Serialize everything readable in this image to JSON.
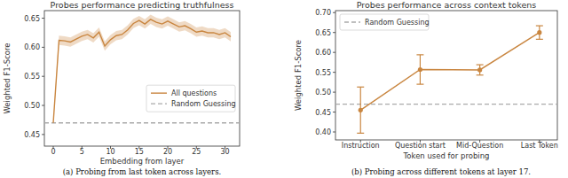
{
  "chart_data": [
    {
      "type": "line",
      "title": "Probes performance predicting truthfulness",
      "x_label": "Embedding from layer",
      "y_label": "Weighted F1-Score",
      "caption": "(a) Probing from last token across layers.",
      "x": [
        0,
        1,
        2,
        3,
        4,
        5,
        6,
        7,
        8,
        9,
        10,
        11,
        12,
        13,
        14,
        15,
        16,
        17,
        18,
        19,
        20,
        21,
        22,
        23,
        24,
        25,
        26,
        27,
        28,
        29,
        30,
        31
      ],
      "series": [
        {
          "name": "All questions",
          "color": "#c98640",
          "values": [
            0.47,
            0.612,
            0.611,
            0.609,
            0.614,
            0.619,
            0.622,
            0.616,
            0.626,
            0.602,
            0.613,
            0.62,
            0.622,
            0.63,
            0.641,
            0.646,
            0.64,
            0.648,
            0.643,
            0.64,
            0.645,
            0.64,
            0.635,
            0.637,
            0.632,
            0.626,
            0.628,
            0.625,
            0.625,
            0.622,
            0.625,
            0.618
          ],
          "errors": [
            0.003,
            0.008,
            0.008,
            0.008,
            0.008,
            0.008,
            0.008,
            0.008,
            0.008,
            0.008,
            0.008,
            0.008,
            0.008,
            0.008,
            0.008,
            0.008,
            0.008,
            0.008,
            0.008,
            0.008,
            0.008,
            0.008,
            0.008,
            0.008,
            0.008,
            0.008,
            0.008,
            0.008,
            0.008,
            0.008,
            0.008,
            0.008
          ]
        }
      ],
      "hlines": [
        {
          "name": "Random Guessing",
          "y": 0.47,
          "color": "#aaaaaa",
          "line_style": "dashed"
        }
      ],
      "xlim": [
        -1.55,
        32.55
      ],
      "xticks": [
        0,
        5,
        10,
        15,
        20,
        25,
        30
      ],
      "ylim": [
        0.43,
        0.663
      ],
      "yticks": [
        0.45,
        {
          "value": 0.5,
          "label": "0.50"
        },
        0.55,
        {
          "value": 0.6,
          "label": "0.60"
        },
        0.65
      ],
      "grid": false,
      "legend": "center right"
    },
    {
      "type": "line",
      "title": "Probes performance across context tokens",
      "x_label": "Token used for probing",
      "y_label": "Weighted F1-Score",
      "caption": "(b) Probing across different tokens at layer 17.",
      "categories": [
        "Instruction",
        "Question start",
        "Mid-Question",
        "Last Token"
      ],
      "values": [
        0.455,
        0.557,
        0.556,
        0.65
      ],
      "errors": [
        0.058,
        0.037,
        0.013,
        0.017
      ],
      "color": "#c98640",
      "marker": "circle",
      "hlines": [
        {
          "name": "Random Guessing",
          "y": 0.47,
          "color": "#aaaaaa",
          "line_style": "dashed"
        }
      ],
      "ylim": [
        0.38,
        0.705
      ],
      "yticks": [
        {
          "value": 0.4,
          "label": "0.40"
        },
        0.45,
        {
          "value": 0.5,
          "label": "0.50"
        },
        0.55,
        {
          "value": 0.6,
          "label": "0.60"
        },
        0.65,
        {
          "value": 0.7,
          "label": "0.70"
        }
      ],
      "grid": false,
      "legend": "upper left"
    }
  ]
}
